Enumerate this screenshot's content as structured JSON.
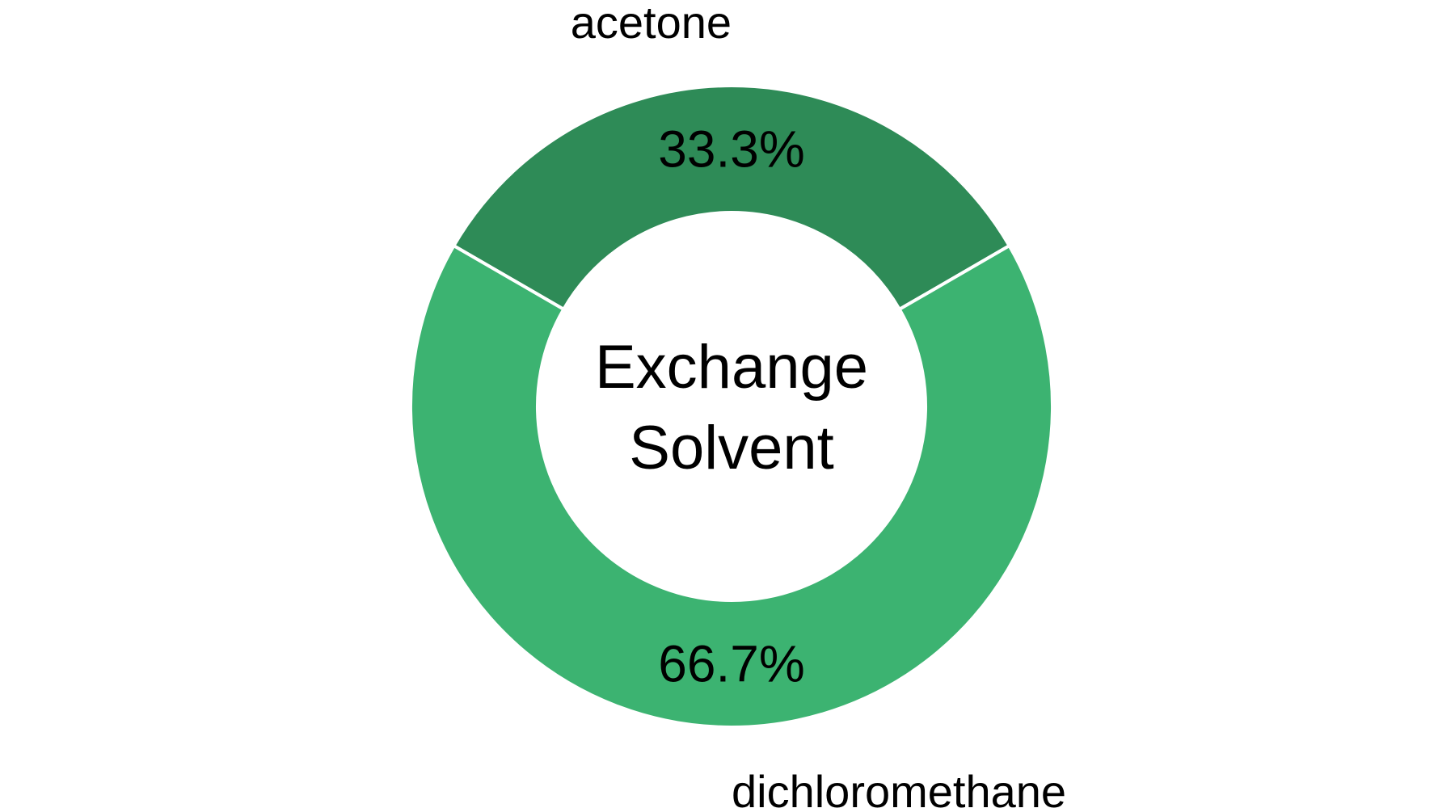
{
  "chart_data": {
    "type": "pie",
    "subtype": "donut",
    "center_text": [
      "Exchange",
      "Solvent"
    ],
    "slices": [
      {
        "label": "acetone",
        "value": 33.3,
        "display": "33.3%",
        "color": "#2e8b57"
      },
      {
        "label": "dichloromethane",
        "value": 66.7,
        "display": "66.7%",
        "color": "#3cb371"
      }
    ],
    "separator_color": "#ffffff"
  }
}
